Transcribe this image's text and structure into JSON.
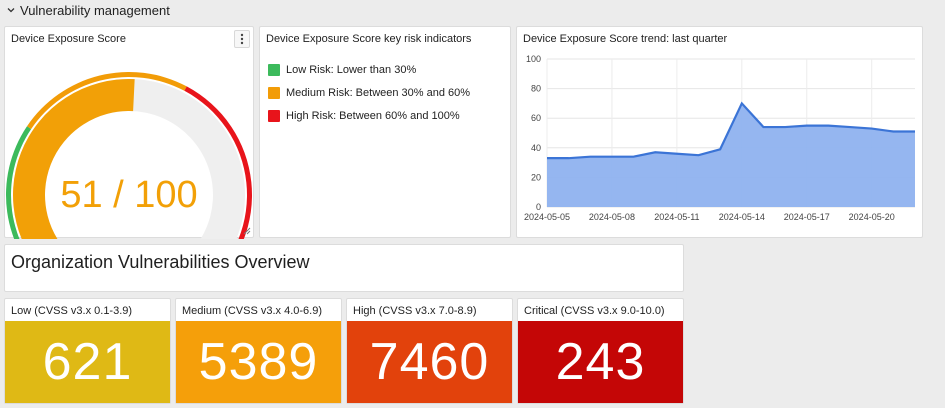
{
  "row": {
    "title": "Vulnerability management",
    "collapse_icon": "chevron-down-icon"
  },
  "exposure_panel": {
    "title": "Device Exposure Score",
    "menu_icon": "more-vertical-icon",
    "score_text": "51 / 100",
    "score_value": 51,
    "max_value": 100,
    "score_color": "#f2a007"
  },
  "indicators_panel": {
    "title": "Device Exposure Score key risk indicators",
    "items": [
      {
        "label": "Low Risk: Lower than 30%",
        "color": "#3cba5c"
      },
      {
        "label": "Medium Risk: Between 30% and 60%",
        "color": "#f29c07"
      },
      {
        "label": "High Risk: Between 60% and 100%",
        "color": "#e8141b"
      }
    ]
  },
  "trend_panel": {
    "title": "Device Exposure Score trend: last quarter",
    "chart_data": {
      "type": "area",
      "x": [
        "2024-05-05",
        "2024-05-06",
        "2024-05-07",
        "2024-05-08",
        "2024-05-09",
        "2024-05-10",
        "2024-05-11",
        "2024-05-12",
        "2024-05-13",
        "2024-05-14",
        "2024-05-15",
        "2024-05-16",
        "2024-05-17",
        "2024-05-18",
        "2024-05-19",
        "2024-05-20",
        "2024-05-21",
        "2024-05-22"
      ],
      "series": [
        {
          "values": [
            33,
            33,
            34,
            34,
            34,
            37,
            36,
            35,
            39,
            70,
            54,
            54,
            55,
            55,
            54,
            53,
            51,
            51
          ]
        }
      ],
      "x_tick_labels": [
        "2024-05-05",
        "2024-05-08",
        "2024-05-11",
        "2024-05-14",
        "2024-05-17",
        "2024-05-20"
      ],
      "y_ticks": [
        0,
        20,
        40,
        60,
        80,
        100
      ],
      "ylim": [
        0,
        100
      ],
      "grid": true,
      "line_color": "#3b74d6",
      "fill_color": "#8fb2ef"
    }
  },
  "overview": {
    "title": "Organization Vulnerabilities Overview"
  },
  "stats": [
    {
      "label": "Low (CVSS v3.x 0.1-3.9)",
      "value": "621",
      "color": "#dfb915"
    },
    {
      "label": "Medium (CVSS v3.x 4.0-6.9)",
      "value": "5389",
      "color": "#f59f0a"
    },
    {
      "label": "High (CVSS v3.x 7.0-8.9)",
      "value": "7460",
      "color": "#e2420c"
    },
    {
      "label": "Critical (CVSS v3.x 9.0-10.0)",
      "value": "243",
      "color": "#c40606"
    }
  ]
}
